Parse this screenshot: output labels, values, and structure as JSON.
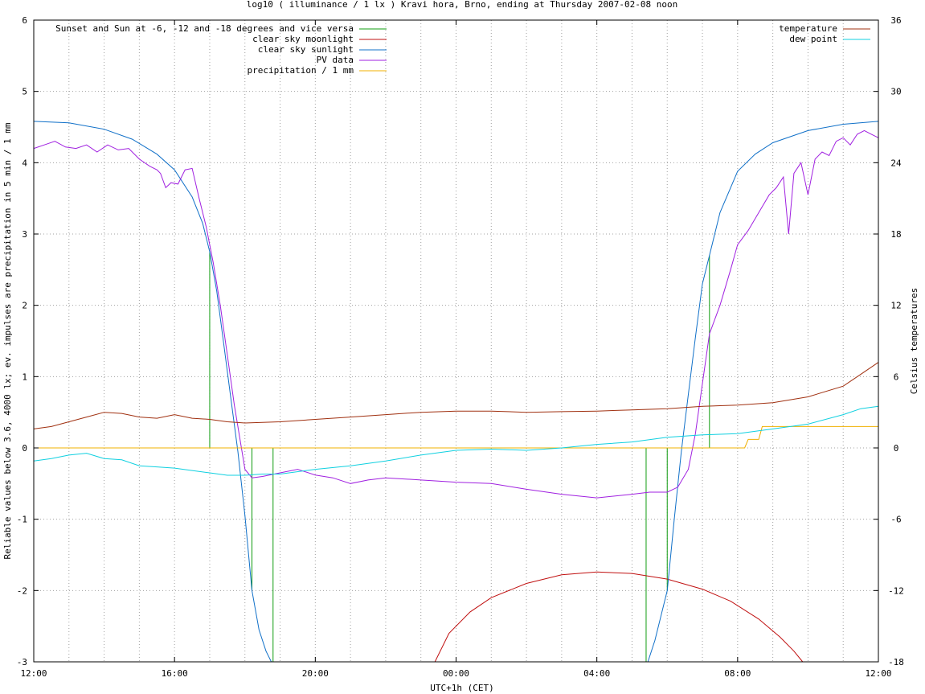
{
  "chart_data": {
    "type": "line",
    "title": "log10 ( illuminance / 1 lx ) Kravi hora, Brno, ending at Thursday 2007-02-08 noon",
    "xlabel": "UTC+1h (CET)",
    "ylabel": "Reliable values below 3.6, 4000 lx; ev. impulses are precipitation in 5 min / 1 mm",
    "y2label": "Celsius temperatures",
    "xlim": [
      0,
      24
    ],
    "ylim": [
      -3,
      6
    ],
    "y2lim": [
      -18,
      36
    ],
    "grid": true,
    "legend_left_position": "top-left",
    "legend_right_position": "top-right",
    "x_ticks": [
      {
        "v": 0,
        "label": "12:00"
      },
      {
        "v": 4,
        "label": "16:00"
      },
      {
        "v": 8,
        "label": "20:00"
      },
      {
        "v": 12,
        "label": "00:00"
      },
      {
        "v": 16,
        "label": "04:00"
      },
      {
        "v": 20,
        "label": "08:00"
      },
      {
        "v": 24,
        "label": "12:00"
      }
    ],
    "y_ticks": [
      {
        "v": -3,
        "label": "-3"
      },
      {
        "v": -2,
        "label": "-2"
      },
      {
        "v": -1,
        "label": "-1"
      },
      {
        "v": 0,
        "label": "0"
      },
      {
        "v": 1,
        "label": "1"
      },
      {
        "v": 2,
        "label": "2"
      },
      {
        "v": 3,
        "label": "3"
      },
      {
        "v": 4,
        "label": "4"
      },
      {
        "v": 5,
        "label": "5"
      },
      {
        "v": 6,
        "label": "6"
      }
    ],
    "y2_ticks": [
      {
        "v": -18,
        "label": "-18"
      },
      {
        "v": -12,
        "label": "-12"
      },
      {
        "v": -6,
        "label": "-6"
      },
      {
        "v": 0,
        "label": "0"
      },
      {
        "v": 6,
        "label": "6"
      },
      {
        "v": 12,
        "label": "12"
      },
      {
        "v": 18,
        "label": "18"
      },
      {
        "v": 24,
        "label": "24"
      },
      {
        "v": 30,
        "label": "30"
      },
      {
        "v": 36,
        "label": "36"
      }
    ],
    "series": [
      {
        "name": "Sunset and Sun at -6, -12 and -18 degrees and vice versa",
        "axis": "left",
        "kind": "impulse",
        "color": "#109c10",
        "points": [
          [
            5.0,
            2.75
          ],
          [
            6.2,
            -2.0
          ],
          [
            6.8,
            -3.0
          ],
          [
            17.4,
            -3.0
          ],
          [
            18.0,
            -2.0
          ],
          [
            19.2,
            2.7
          ]
        ]
      },
      {
        "name": "clear sky moonlight",
        "axis": "left",
        "kind": "line",
        "color": "#c01010",
        "points": [
          [
            11.4,
            -3.0
          ],
          [
            11.8,
            -2.6
          ],
          [
            12.4,
            -2.3
          ],
          [
            13.0,
            -2.1
          ],
          [
            14.0,
            -1.9
          ],
          [
            15.0,
            -1.78
          ],
          [
            16.0,
            -1.74
          ],
          [
            17.0,
            -1.76
          ],
          [
            18.0,
            -1.84
          ],
          [
            19.0,
            -1.98
          ],
          [
            19.8,
            -2.15
          ],
          [
            20.6,
            -2.4
          ],
          [
            21.2,
            -2.65
          ],
          [
            21.6,
            -2.85
          ],
          [
            21.85,
            -3.0
          ]
        ]
      },
      {
        "name": "clear sky sunlight",
        "axis": "left",
        "kind": "line",
        "color": "#1070c8",
        "points": [
          [
            0,
            4.58
          ],
          [
            1.0,
            4.56
          ],
          [
            2.0,
            4.47
          ],
          [
            2.8,
            4.33
          ],
          [
            3.5,
            4.12
          ],
          [
            4.0,
            3.9
          ],
          [
            4.5,
            3.52
          ],
          [
            4.8,
            3.15
          ],
          [
            5.0,
            2.75
          ],
          [
            5.2,
            2.2
          ],
          [
            5.4,
            1.45
          ],
          [
            5.6,
            0.7
          ],
          [
            5.8,
            -0.05
          ],
          [
            6.0,
            -0.95
          ],
          [
            6.2,
            -2.0
          ],
          [
            6.4,
            -2.55
          ],
          [
            6.6,
            -2.85
          ],
          [
            6.75,
            -3.0
          ],
          [
            17.45,
            -3.0
          ],
          [
            17.65,
            -2.7
          ],
          [
            17.85,
            -2.3
          ],
          [
            18.0,
            -2.0
          ],
          [
            18.2,
            -1.0
          ],
          [
            18.4,
            -0.05
          ],
          [
            18.6,
            0.75
          ],
          [
            18.8,
            1.55
          ],
          [
            19.0,
            2.3
          ],
          [
            19.2,
            2.7
          ],
          [
            19.5,
            3.3
          ],
          [
            20.0,
            3.88
          ],
          [
            20.5,
            4.12
          ],
          [
            21.0,
            4.28
          ],
          [
            22.0,
            4.45
          ],
          [
            23.0,
            4.54
          ],
          [
            24.0,
            4.58
          ]
        ]
      },
      {
        "name": "PV data",
        "axis": "left",
        "kind": "line",
        "color": "#a020e0",
        "points": [
          [
            0,
            4.2
          ],
          [
            0.3,
            4.25
          ],
          [
            0.6,
            4.3
          ],
          [
            0.9,
            4.22
          ],
          [
            1.2,
            4.2
          ],
          [
            1.5,
            4.25
          ],
          [
            1.8,
            4.15
          ],
          [
            2.1,
            4.25
          ],
          [
            2.4,
            4.18
          ],
          [
            2.7,
            4.2
          ],
          [
            3.0,
            4.05
          ],
          [
            3.3,
            3.95
          ],
          [
            3.5,
            3.9
          ],
          [
            3.6,
            3.85
          ],
          [
            3.75,
            3.65
          ],
          [
            3.9,
            3.72
          ],
          [
            4.1,
            3.7
          ],
          [
            4.3,
            3.9
          ],
          [
            4.5,
            3.92
          ],
          [
            4.7,
            3.5
          ],
          [
            4.9,
            3.1
          ],
          [
            5.1,
            2.6
          ],
          [
            5.3,
            2.0
          ],
          [
            5.5,
            1.3
          ],
          [
            5.7,
            0.6
          ],
          [
            5.9,
            0.0
          ],
          [
            6.0,
            -0.3
          ],
          [
            6.2,
            -0.42
          ],
          [
            6.5,
            -0.4
          ],
          [
            7.0,
            -0.35
          ],
          [
            7.5,
            -0.3
          ],
          [
            8.0,
            -0.38
          ],
          [
            8.5,
            -0.42
          ],
          [
            9.0,
            -0.5
          ],
          [
            9.5,
            -0.45
          ],
          [
            10.0,
            -0.42
          ],
          [
            11.0,
            -0.45
          ],
          [
            12.0,
            -0.48
          ],
          [
            13.0,
            -0.5
          ],
          [
            14.0,
            -0.58
          ],
          [
            15.0,
            -0.65
          ],
          [
            16.0,
            -0.7
          ],
          [
            17.0,
            -0.65
          ],
          [
            17.5,
            -0.62
          ],
          [
            18.0,
            -0.62
          ],
          [
            18.3,
            -0.55
          ],
          [
            18.6,
            -0.3
          ],
          [
            18.8,
            0.2
          ],
          [
            19.0,
            0.9
          ],
          [
            19.2,
            1.6
          ],
          [
            19.5,
            2.0
          ],
          [
            19.8,
            2.5
          ],
          [
            20.0,
            2.85
          ],
          [
            20.3,
            3.05
          ],
          [
            20.6,
            3.3
          ],
          [
            20.9,
            3.55
          ],
          [
            21.1,
            3.65
          ],
          [
            21.3,
            3.8
          ],
          [
            21.45,
            3.0
          ],
          [
            21.6,
            3.85
          ],
          [
            21.8,
            4.0
          ],
          [
            22.0,
            3.55
          ],
          [
            22.2,
            4.05
          ],
          [
            22.4,
            4.15
          ],
          [
            22.6,
            4.1
          ],
          [
            22.8,
            4.3
          ],
          [
            23.0,
            4.35
          ],
          [
            23.2,
            4.25
          ],
          [
            23.4,
            4.4
          ],
          [
            23.6,
            4.45
          ],
          [
            23.8,
            4.4
          ],
          [
            24.0,
            4.35
          ]
        ]
      },
      {
        "name": "precipitation / 1 mm",
        "axis": "left",
        "kind": "line",
        "color": "#f0b000",
        "points": [
          [
            0,
            0.0
          ],
          [
            20.2,
            0.0
          ],
          [
            20.3,
            0.12
          ],
          [
            20.6,
            0.12
          ],
          [
            20.7,
            0.3
          ],
          [
            24.0,
            0.3
          ]
        ]
      },
      {
        "name": "temperature",
        "axis": "right",
        "kind": "line",
        "color": "#a03010",
        "points": [
          [
            0,
            1.6
          ],
          [
            0.5,
            1.8
          ],
          [
            1.0,
            2.2
          ],
          [
            1.5,
            2.6
          ],
          [
            2.0,
            3.0
          ],
          [
            2.5,
            2.9
          ],
          [
            3.0,
            2.6
          ],
          [
            3.5,
            2.5
          ],
          [
            4.0,
            2.8
          ],
          [
            4.5,
            2.5
          ],
          [
            5.0,
            2.4
          ],
          [
            5.5,
            2.2
          ],
          [
            6.0,
            2.1
          ],
          [
            7.0,
            2.2
          ],
          [
            8.0,
            2.4
          ],
          [
            9.0,
            2.6
          ],
          [
            10.0,
            2.8
          ],
          [
            11.0,
            3.0
          ],
          [
            12.0,
            3.1
          ],
          [
            13.0,
            3.1
          ],
          [
            14.0,
            3.0
          ],
          [
            15.0,
            3.05
          ],
          [
            16.0,
            3.1
          ],
          [
            17.0,
            3.2
          ],
          [
            18.0,
            3.3
          ],
          [
            19.0,
            3.5
          ],
          [
            20.0,
            3.6
          ],
          [
            21.0,
            3.8
          ],
          [
            22.0,
            4.3
          ],
          [
            23.0,
            5.2
          ],
          [
            23.5,
            6.2
          ],
          [
            24.0,
            7.2
          ]
        ]
      },
      {
        "name": "dew point",
        "axis": "right",
        "kind": "line",
        "color": "#10d0e0",
        "points": [
          [
            0,
            -1.1
          ],
          [
            0.5,
            -0.9
          ],
          [
            1.0,
            -0.6
          ],
          [
            1.5,
            -0.45
          ],
          [
            2.0,
            -0.9
          ],
          [
            2.5,
            -1.0
          ],
          [
            3.0,
            -1.5
          ],
          [
            3.5,
            -1.6
          ],
          [
            4.0,
            -1.7
          ],
          [
            4.5,
            -1.9
          ],
          [
            5.0,
            -2.1
          ],
          [
            5.5,
            -2.3
          ],
          [
            6.0,
            -2.3
          ],
          [
            6.5,
            -2.2
          ],
          [
            7.0,
            -2.2
          ],
          [
            8.0,
            -1.8
          ],
          [
            9.0,
            -1.5
          ],
          [
            10.0,
            -1.1
          ],
          [
            11.0,
            -0.6
          ],
          [
            12.0,
            -0.2
          ],
          [
            13.0,
            -0.1
          ],
          [
            14.0,
            -0.2
          ],
          [
            15.0,
            0.0
          ],
          [
            16.0,
            0.3
          ],
          [
            17.0,
            0.5
          ],
          [
            18.0,
            0.9
          ],
          [
            19.0,
            1.1
          ],
          [
            20.0,
            1.2
          ],
          [
            21.0,
            1.6
          ],
          [
            22.0,
            2.0
          ],
          [
            23.0,
            2.8
          ],
          [
            23.5,
            3.3
          ],
          [
            24.0,
            3.5
          ]
        ]
      }
    ]
  }
}
